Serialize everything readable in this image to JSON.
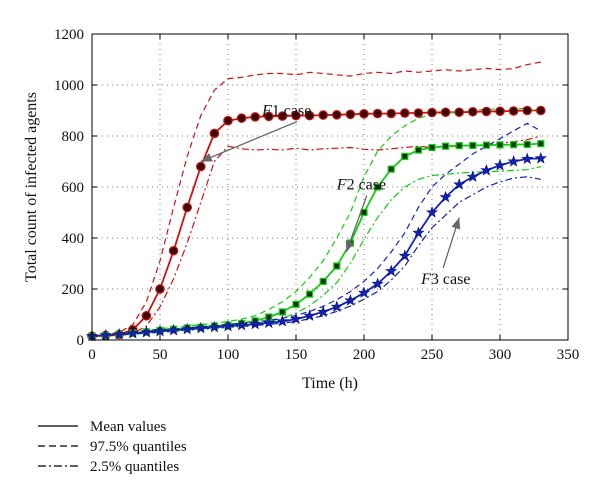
{
  "chart_data": {
    "type": "line",
    "xlabel": "Time (h)",
    "ylabel": "Total count of infected agents",
    "xlim": [
      0,
      350
    ],
    "ylim": [
      0,
      1200
    ],
    "xticks": [
      0,
      50,
      100,
      150,
      200,
      250,
      300,
      350
    ],
    "yticks": [
      0,
      200,
      400,
      600,
      800,
      1000,
      1200
    ],
    "grid": true,
    "colors": {
      "f1": "#cc1111",
      "f2": "#11cc11",
      "f3": "#1122bb"
    },
    "series": [
      {
        "id": "f1",
        "name": "F1 case",
        "x": [
          0,
          10,
          20,
          30,
          40,
          50,
          60,
          70,
          80,
          90,
          100,
          110,
          120,
          130,
          140,
          150,
          160,
          170,
          180,
          190,
          200,
          210,
          220,
          230,
          240,
          250,
          260,
          270,
          280,
          290,
          300,
          310,
          320,
          330
        ],
        "mean": [
          15,
          18,
          22,
          40,
          95,
          200,
          350,
          520,
          680,
          810,
          860,
          870,
          875,
          877,
          878,
          880,
          880,
          882,
          883,
          885,
          887,
          888,
          888,
          890,
          890,
          892,
          893,
          893,
          895,
          896,
          897,
          898,
          900,
          900
        ],
        "q975": [
          15,
          20,
          30,
          60,
          150,
          310,
          520,
          720,
          880,
          980,
          1025,
          1030,
          1040,
          1045,
          1045,
          1040,
          1050,
          1045,
          1040,
          1035,
          1045,
          1050,
          1045,
          1055,
          1050,
          1055,
          1060,
          1055,
          1060,
          1065,
          1060,
          1065,
          1080,
          1090
        ],
        "q025": [
          15,
          17,
          18,
          25,
          55,
          130,
          240,
          380,
          540,
          700,
          760,
          750,
          745,
          748,
          745,
          752,
          745,
          750,
          752,
          755,
          748,
          745,
          750,
          755,
          760,
          755,
          758,
          760,
          762,
          765,
          770,
          778,
          785,
          800
        ]
      },
      {
        "id": "f2",
        "name": "F2 case",
        "x": [
          0,
          10,
          20,
          30,
          40,
          50,
          60,
          70,
          80,
          90,
          100,
          110,
          120,
          130,
          140,
          150,
          160,
          170,
          180,
          190,
          200,
          210,
          220,
          230,
          240,
          250,
          260,
          270,
          280,
          290,
          300,
          310,
          320,
          330
        ],
        "mean": [
          15,
          18,
          22,
          27,
          32,
          38,
          42,
          47,
          50,
          55,
          58,
          65,
          75,
          90,
          110,
          140,
          180,
          230,
          290,
          380,
          500,
          600,
          670,
          720,
          745,
          755,
          760,
          762,
          763,
          764,
          765,
          766,
          767,
          770
        ],
        "q975": [
          15,
          20,
          25,
          30,
          37,
          44,
          50,
          55,
          60,
          66,
          72,
          82,
          95,
          120,
          150,
          190,
          245,
          310,
          400,
          500,
          640,
          740,
          800,
          840,
          870,
          885,
          890,
          895,
          900,
          905,
          905,
          905,
          910,
          890
        ],
        "q025": [
          15,
          16,
          19,
          23,
          27,
          32,
          36,
          40,
          43,
          47,
          50,
          55,
          62,
          72,
          86,
          105,
          135,
          175,
          225,
          300,
          395,
          480,
          550,
          600,
          630,
          645,
          650,
          655,
          658,
          660,
          662,
          665,
          668,
          680
        ]
      },
      {
        "id": "f3",
        "name": "F3 case",
        "x": [
          0,
          10,
          20,
          30,
          40,
          50,
          60,
          70,
          80,
          90,
          100,
          110,
          120,
          130,
          140,
          150,
          160,
          170,
          180,
          190,
          200,
          210,
          220,
          230,
          240,
          250,
          260,
          270,
          280,
          290,
          300,
          310,
          320,
          330
        ],
        "mean": [
          15,
          18,
          22,
          26,
          30,
          34,
          38,
          42,
          46,
          50,
          54,
          58,
          62,
          67,
          73,
          82,
          95,
          110,
          130,
          155,
          185,
          220,
          270,
          330,
          420,
          500,
          560,
          610,
          640,
          665,
          685,
          700,
          710,
          712
        ],
        "q975": [
          15,
          19,
          24,
          29,
          34,
          38,
          43,
          47,
          52,
          56,
          61,
          66,
          71,
          77,
          85,
          96,
          112,
          132,
          158,
          190,
          230,
          280,
          345,
          420,
          520,
          600,
          650,
          690,
          730,
          760,
          790,
          820,
          850,
          820
        ],
        "q025": [
          15,
          17,
          20,
          23,
          27,
          30,
          34,
          38,
          42,
          46,
          50,
          53,
          57,
          61,
          66,
          73,
          83,
          95,
          112,
          133,
          160,
          190,
          235,
          290,
          370,
          440,
          490,
          540,
          570,
          600,
          620,
          635,
          640,
          630
        ]
      }
    ],
    "annotations": [
      {
        "id": "f1",
        "italic": "F",
        "rest": "1 case",
        "tx": 125,
        "ty": 880,
        "ax": 80,
        "ay": 700
      },
      {
        "id": "f2",
        "italic": "F",
        "rest": "2 case",
        "tx": 180,
        "ty": 590,
        "ax": 187,
        "ay": 345
      },
      {
        "id": "f3",
        "italic": "F",
        "rest": "3 case",
        "tx": 242,
        "ty": 220,
        "ax": 270,
        "ay": 480
      }
    ],
    "legend": {
      "placement": "bottom-left",
      "entries": [
        {
          "label": "Mean values",
          "style": "solid"
        },
        {
          "label": "97.5% quantiles",
          "style": "dashed"
        },
        {
          "label": "2.5% quantiles",
          "style": "dashdot"
        }
      ]
    }
  }
}
